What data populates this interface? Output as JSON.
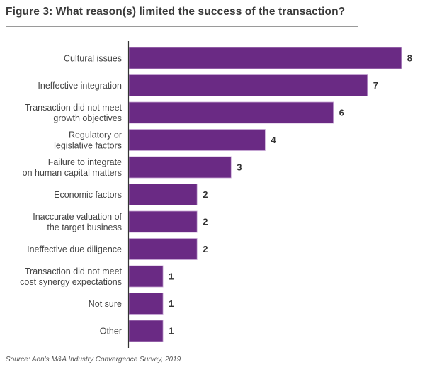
{
  "header": {
    "title": "Figure 3: What reason(s) limited the success of the transaction?"
  },
  "footer": {
    "source": "Source: Aon's M&A Industry Convergence Survey, 2019"
  },
  "colors": {
    "bar": "#6a2a84",
    "bar_edge": "#c9a9d6",
    "axis": "#333333"
  },
  "chart_data": {
    "type": "bar",
    "orientation": "horizontal",
    "title": "Figure 3: What reason(s) limited the success of the transaction?",
    "xlabel": "",
    "ylabel": "",
    "grid": false,
    "xlim": [
      0,
      8
    ],
    "categories": [
      [
        "Cultural issues"
      ],
      [
        "Ineffective integration"
      ],
      [
        "Transaction did not meet",
        "growth objectives"
      ],
      [
        "Regulatory or",
        "legislative factors"
      ],
      [
        "Failure to integrate",
        "on human capital matters"
      ],
      [
        "Economic factors"
      ],
      [
        "Inaccurate valuation of",
        "the target business"
      ],
      [
        "Ineffective due diligence"
      ],
      [
        "Transaction did not meet",
        "cost synergy expectations"
      ],
      [
        "Not sure"
      ],
      [
        "Other"
      ]
    ],
    "values": [
      8,
      7,
      6,
      4,
      3,
      2,
      2,
      2,
      1,
      1,
      1
    ],
    "data_labels": [
      "8",
      "7",
      "6",
      "4",
      "3",
      "2",
      "2",
      "2",
      "1",
      "1",
      "1"
    ]
  }
}
